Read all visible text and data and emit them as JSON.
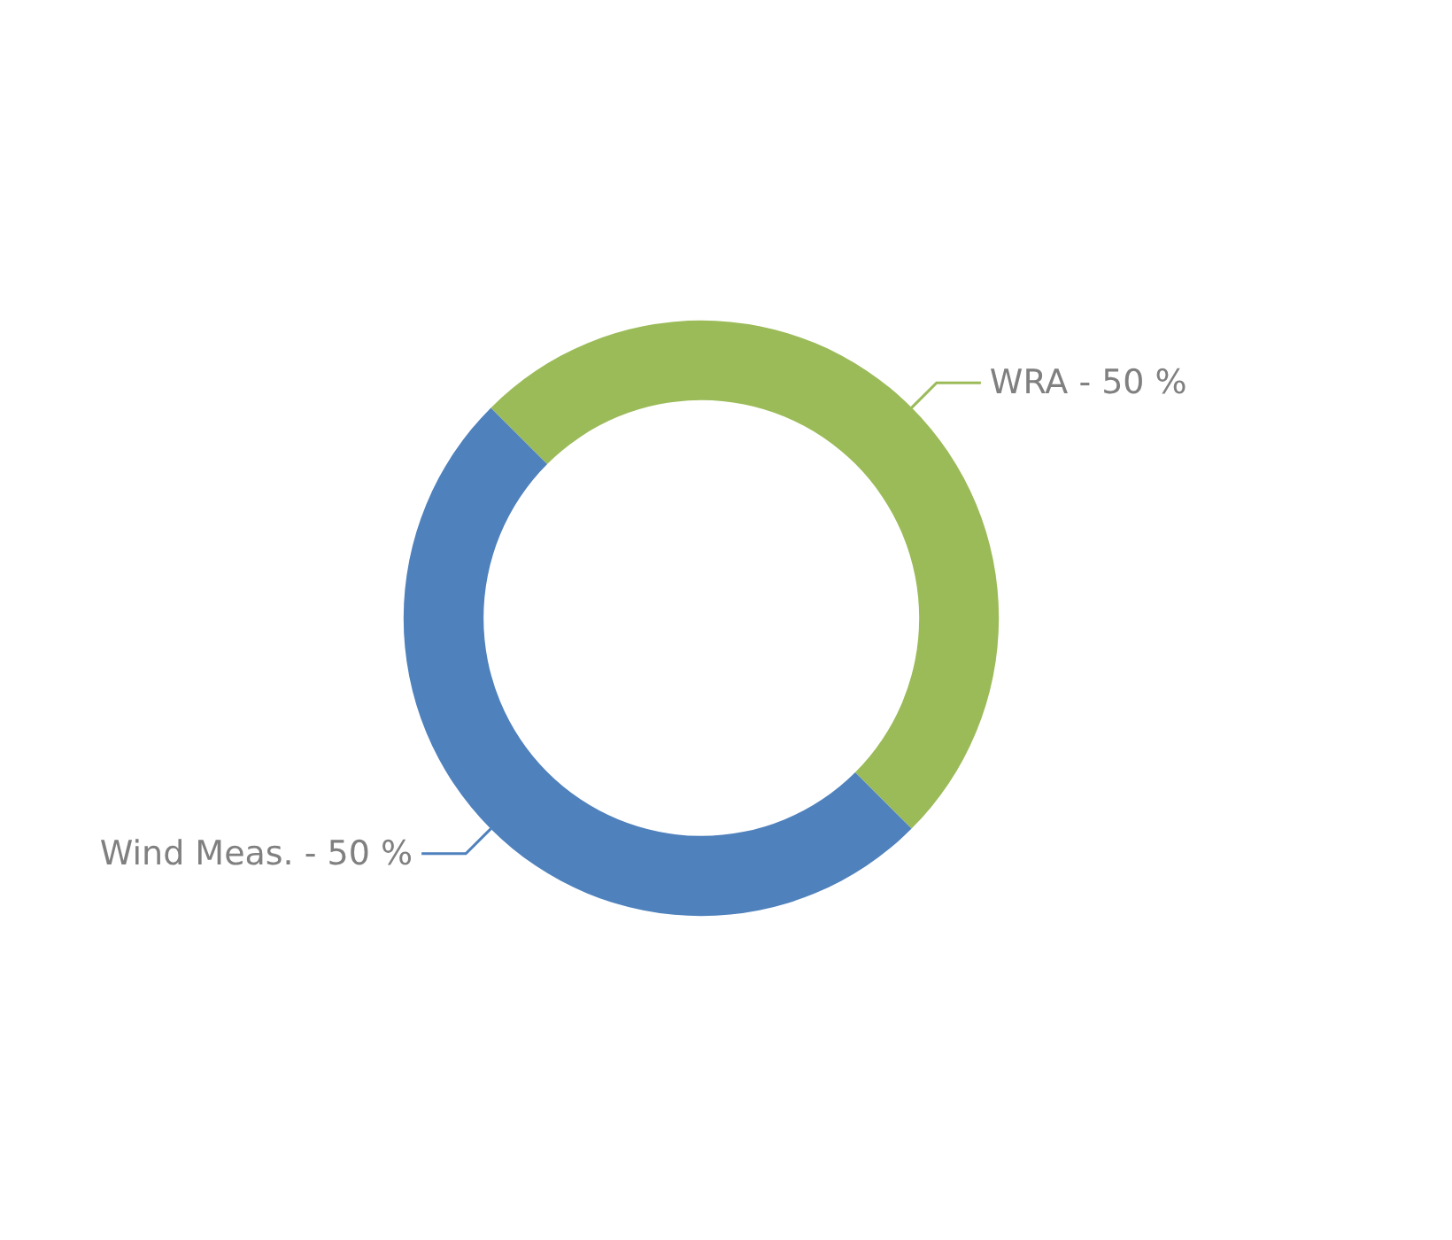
{
  "chart_data": {
    "type": "donut",
    "categories": [
      "WRA",
      "Wind Meas."
    ],
    "values": [
      50,
      50
    ],
    "colors": [
      "#9bbb59",
      "#4f81bd"
    ],
    "value_labels": [
      "50 %",
      "50 %"
    ],
    "legend": false
  }
}
